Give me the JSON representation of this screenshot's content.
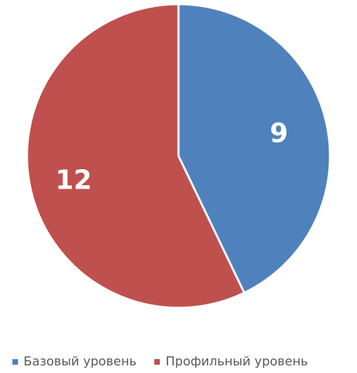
{
  "chart_data": {
    "type": "pie",
    "categories": [
      "Базовый уровень",
      "Профильный уровень"
    ],
    "values": [
      9,
      12
    ],
    "data_labels": [
      "9",
      "12"
    ],
    "colors": [
      "#4f81bd",
      "#c0504d"
    ],
    "title": "",
    "legend_position": "bottom",
    "start_angle": "top",
    "direction": "clockwise"
  }
}
